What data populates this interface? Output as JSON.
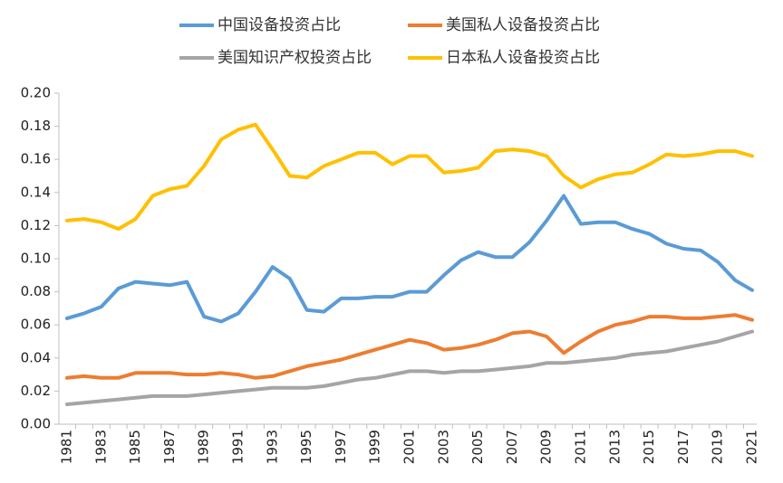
{
  "chart_data": {
    "type": "line",
    "title": "",
    "xlabel": "",
    "ylabel": "",
    "ylim": [
      0,
      0.2
    ],
    "yticks": [
      "0.00",
      "0.02",
      "0.04",
      "0.06",
      "0.08",
      "0.10",
      "0.12",
      "0.14",
      "0.16",
      "0.18",
      "0.20"
    ],
    "x": [
      "1981",
      "1982",
      "1983",
      "1984",
      "1985",
      "1986",
      "1987",
      "1988",
      "1989",
      "1990",
      "1991",
      "1992",
      "1993",
      "1994",
      "1995",
      "1996",
      "1997",
      "1998",
      "1999",
      "2000",
      "2001",
      "2002",
      "2003",
      "2004",
      "2005",
      "2006",
      "2007",
      "2008",
      "2009",
      "2010",
      "2011",
      "2012",
      "2013",
      "2014",
      "2015",
      "2016",
      "2017",
      "2018",
      "2019",
      "2020",
      "2021"
    ],
    "xtick_labels": [
      "1981",
      "1983",
      "1985",
      "1987",
      "1989",
      "1991",
      "1993",
      "1995",
      "1997",
      "1999",
      "2001",
      "2003",
      "2005",
      "2007",
      "2009",
      "2011",
      "2013",
      "2015",
      "2017",
      "2019",
      "2021"
    ],
    "grid": false,
    "legend_position": "top",
    "series": [
      {
        "name": "中国设备投资占比",
        "color": "#5B9BD5",
        "values": [
          0.064,
          0.067,
          0.071,
          0.082,
          0.086,
          0.085,
          0.084,
          0.086,
          0.065,
          0.062,
          0.067,
          0.08,
          0.095,
          0.088,
          0.069,
          0.068,
          0.076,
          0.076,
          0.077,
          0.077,
          0.08,
          0.08,
          0.09,
          0.099,
          0.104,
          0.101,
          0.101,
          0.11,
          0.123,
          0.138,
          0.121,
          0.122,
          0.122,
          0.118,
          0.115,
          0.109,
          0.106,
          0.105,
          0.098,
          0.087,
          0.081
        ]
      },
      {
        "name": "美国私人设备投资占比",
        "color": "#ED7D31",
        "values": [
          0.028,
          0.029,
          0.028,
          0.028,
          0.031,
          0.031,
          0.031,
          0.03,
          0.03,
          0.031,
          0.03,
          0.028,
          0.029,
          0.032,
          0.035,
          0.037,
          0.039,
          0.042,
          0.045,
          0.048,
          0.051,
          0.049,
          0.045,
          0.046,
          0.048,
          0.051,
          0.055,
          0.056,
          0.053,
          0.043,
          0.05,
          0.056,
          0.06,
          0.062,
          0.065,
          0.065,
          0.064,
          0.064,
          0.065,
          0.066,
          0.063
        ]
      },
      {
        "name": "美国知识产权投资占比",
        "color": "#A5A5A5",
        "values": [
          0.012,
          0.013,
          0.014,
          0.015,
          0.016,
          0.017,
          0.017,
          0.017,
          0.018,
          0.019,
          0.02,
          0.021,
          0.022,
          0.022,
          0.022,
          0.023,
          0.025,
          0.027,
          0.028,
          0.03,
          0.032,
          0.032,
          0.031,
          0.032,
          0.032,
          0.033,
          0.034,
          0.035,
          0.037,
          0.037,
          0.038,
          0.039,
          0.04,
          0.042,
          0.043,
          0.044,
          0.046,
          0.048,
          0.05,
          0.053,
          0.056
        ]
      },
      {
        "name": "日本私人设备投资占比",
        "color": "#FFC000",
        "values": [
          0.123,
          0.124,
          0.122,
          0.118,
          0.124,
          0.138,
          0.142,
          0.144,
          0.156,
          0.172,
          0.178,
          0.181,
          0.166,
          0.15,
          0.149,
          0.156,
          0.16,
          0.164,
          0.164,
          0.157,
          0.162,
          0.162,
          0.152,
          0.153,
          0.155,
          0.165,
          0.166,
          0.165,
          0.162,
          0.15,
          0.143,
          0.148,
          0.151,
          0.152,
          0.157,
          0.163,
          0.162,
          0.163,
          0.165,
          0.165,
          0.162
        ]
      }
    ]
  }
}
